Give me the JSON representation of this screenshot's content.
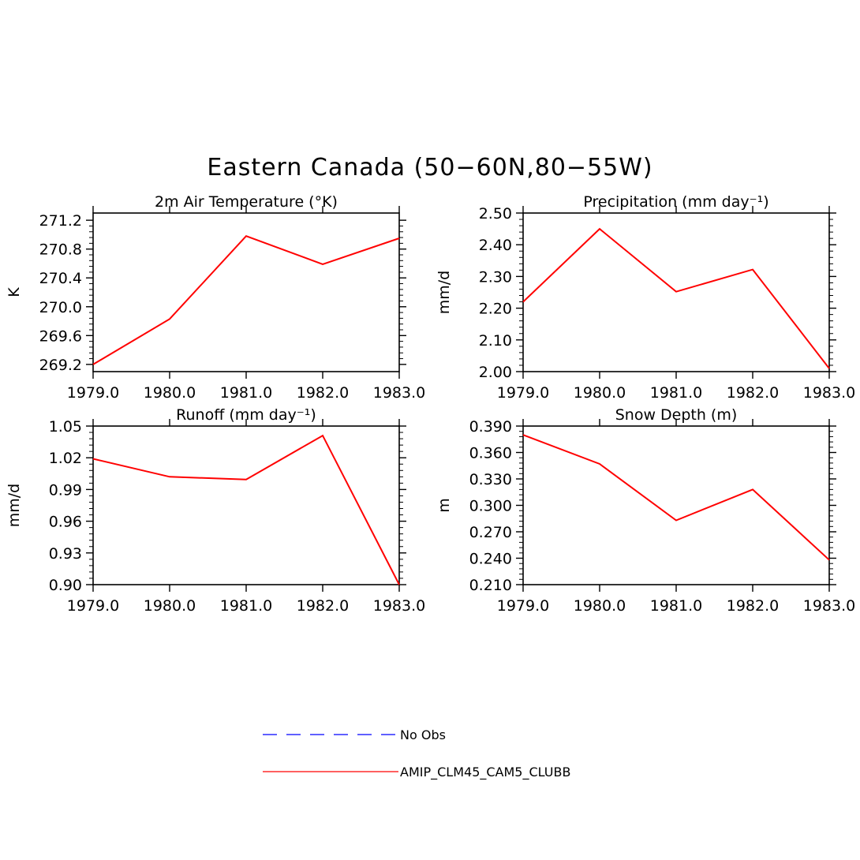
{
  "title": "Eastern Canada (50−60N,80−55W)",
  "colors": {
    "model": "#ff0000",
    "obs": "#0000ff",
    "axis": "#000000"
  },
  "legend": [
    {
      "label": "No Obs",
      "style": "dashed",
      "color": "#0000ff"
    },
    {
      "label": "AMIP_CLM45_CAM5_CLUBB",
      "style": "solid",
      "color": "#ff0000"
    }
  ],
  "chart_data": [
    {
      "type": "line",
      "title": "2m Air Temperature (°K)",
      "ylabel": "K",
      "xlabel": "",
      "x": [
        1979,
        1980,
        1981,
        1982,
        1983
      ],
      "xlim": [
        1979,
        1983
      ],
      "xticks": [
        "1979.0",
        "1980.0",
        "1981.0",
        "1982.0",
        "1983.0"
      ],
      "ylim": [
        269.1,
        271.3
      ],
      "yticks": [
        269.2,
        269.6,
        270.0,
        270.4,
        270.8,
        271.2
      ],
      "yticklabels": [
        "269.2",
        "269.6",
        "270.0",
        "270.4",
        "270.8",
        "271.2"
      ],
      "series": [
        {
          "name": "AMIP_CLM45_CAM5_CLUBB",
          "values": [
            269.2,
            269.83,
            270.98,
            270.59,
            270.95
          ]
        }
      ]
    },
    {
      "type": "line",
      "title": "Precipitation (mm day⁻¹)",
      "ylabel": "mm/d",
      "xlabel": "",
      "x": [
        1979,
        1980,
        1981,
        1982,
        1983
      ],
      "xlim": [
        1979,
        1983
      ],
      "xticks": [
        "1979.0",
        "1980.0",
        "1981.0",
        "1982.0",
        "1983.0"
      ],
      "ylim": [
        2.0,
        2.5
      ],
      "yticks": [
        2.0,
        2.1,
        2.2,
        2.3,
        2.4,
        2.5
      ],
      "yticklabels": [
        "2.00",
        "2.10",
        "2.20",
        "2.30",
        "2.40",
        "2.50"
      ],
      "series": [
        {
          "name": "AMIP_CLM45_CAM5_CLUBB",
          "values": [
            2.22,
            2.45,
            2.252,
            2.322,
            2.01
          ]
        }
      ]
    },
    {
      "type": "line",
      "title": "Runoff (mm day⁻¹)",
      "ylabel": "mm/d",
      "xlabel": "",
      "x": [
        1979,
        1980,
        1981,
        1982,
        1983
      ],
      "xlim": [
        1979,
        1983
      ],
      "xticks": [
        "1979.0",
        "1980.0",
        "1981.0",
        "1982.0",
        "1983.0"
      ],
      "ylim": [
        0.9,
        1.05
      ],
      "yticks": [
        0.9,
        0.93,
        0.96,
        0.99,
        1.02,
        1.05
      ],
      "yticklabels": [
        "0.90",
        "0.93",
        "0.96",
        "0.99",
        "1.02",
        "1.05"
      ],
      "series": [
        {
          "name": "AMIP_CLM45_CAM5_CLUBB",
          "values": [
            1.019,
            1.002,
            0.9995,
            1.041,
            0.9
          ]
        }
      ]
    },
    {
      "type": "line",
      "title": "Snow Depth (m)",
      "ylabel": "m",
      "xlabel": "",
      "x": [
        1979,
        1980,
        1981,
        1982,
        1983
      ],
      "xlim": [
        1979,
        1983
      ],
      "xticks": [
        "1979.0",
        "1980.0",
        "1981.0",
        "1982.0",
        "1983.0"
      ],
      "ylim": [
        0.21,
        0.39
      ],
      "yticks": [
        0.21,
        0.24,
        0.27,
        0.3,
        0.33,
        0.36,
        0.39
      ],
      "yticklabels": [
        "0.210",
        "0.240",
        "0.270",
        "0.300",
        "0.330",
        "0.360",
        "0.390"
      ],
      "series": [
        {
          "name": "AMIP_CLM45_CAM5_CLUBB",
          "values": [
            0.38,
            0.347,
            0.283,
            0.318,
            0.238
          ]
        }
      ]
    }
  ]
}
